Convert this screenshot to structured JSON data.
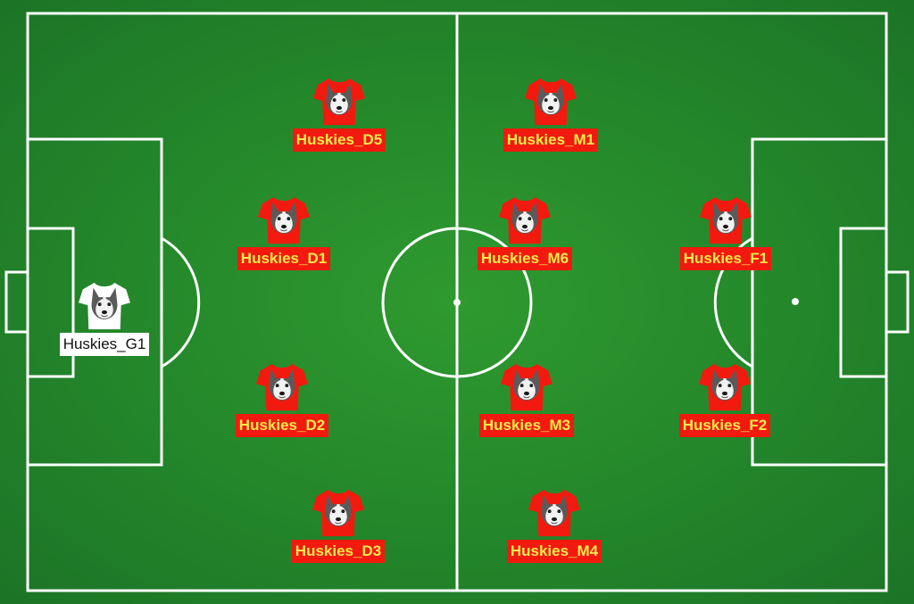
{
  "team": {
    "name": "Huskies",
    "kit_color": "#f21a0f",
    "label_text_color": "#f8e94c",
    "keeper_kit_color": "#ffffff",
    "pitch_color": "#26892b",
    "line_color": "#ffffff"
  },
  "players": [
    {
      "id": "g1",
      "label": "Huskies_G1",
      "role": "goalkeeper",
      "icon": "husky-face-icon"
    },
    {
      "id": "d5",
      "label": "Huskies_D5",
      "role": "defender",
      "icon": "husky-face-icon"
    },
    {
      "id": "d1",
      "label": "Huskies_D1",
      "role": "defender",
      "icon": "husky-face-icon"
    },
    {
      "id": "d2",
      "label": "Huskies_D2",
      "role": "defender",
      "icon": "husky-face-icon"
    },
    {
      "id": "d3",
      "label": "Huskies_D3",
      "role": "defender",
      "icon": "husky-face-icon"
    },
    {
      "id": "m1",
      "label": "Huskies_M1",
      "role": "midfielder",
      "icon": "husky-face-icon"
    },
    {
      "id": "m6",
      "label": "Huskies_M6",
      "role": "midfielder",
      "icon": "husky-face-icon"
    },
    {
      "id": "m3",
      "label": "Huskies_M3",
      "role": "midfielder",
      "icon": "husky-face-icon"
    },
    {
      "id": "m4",
      "label": "Huskies_M4",
      "role": "midfielder",
      "icon": "husky-face-icon"
    },
    {
      "id": "f1",
      "label": "Huskies_F1",
      "role": "forward",
      "icon": "husky-face-icon"
    },
    {
      "id": "f2",
      "label": "Huskies_F2",
      "role": "forward",
      "icon": "husky-face-icon"
    }
  ]
}
